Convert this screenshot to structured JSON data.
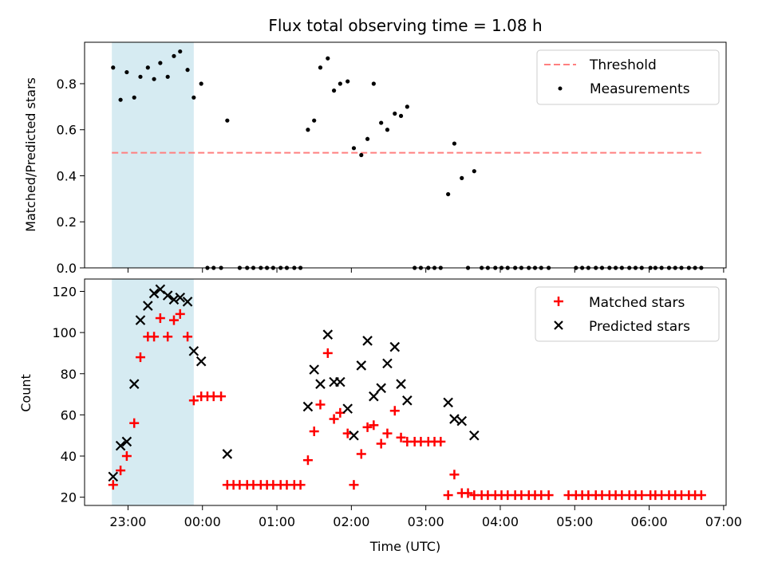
{
  "chart_data": [
    {
      "type": "scatter",
      "title": "Flux total observing time = 1.08 h",
      "xlabel": "",
      "ylabel": "Matched/Predicted stars",
      "ylim": [
        0,
        0.98
      ],
      "yticks": [
        "0.0",
        "0.2",
        "0.4",
        "0.6",
        "0.8"
      ],
      "shaded_region": {
        "from": "22:47",
        "to": "23:53",
        "color": "#add8e6"
      },
      "threshold": {
        "name": "Threshold",
        "value": 0.5,
        "from": "22:47",
        "to": "06:42",
        "color": "#ff7f7f"
      },
      "legend_position": "upper right",
      "legend": [
        "Threshold",
        "Measurements"
      ],
      "series": [
        {
          "name": "Measurements",
          "color": "#000000",
          "points": [
            [
              "22:48",
              0.87
            ],
            [
              "22:54",
              0.73
            ],
            [
              "22:59",
              0.85
            ],
            [
              "23:05",
              0.74
            ],
            [
              "23:10",
              0.83
            ],
            [
              "23:16",
              0.87
            ],
            [
              "23:21",
              0.82
            ],
            [
              "23:26",
              0.89
            ],
            [
              "23:32",
              0.83
            ],
            [
              "23:37",
              0.92
            ],
            [
              "23:42",
              0.94
            ],
            [
              "23:48",
              0.86
            ],
            [
              "23:53",
              0.74
            ],
            [
              "23:59",
              0.8
            ],
            [
              "00:04",
              0.0
            ],
            [
              "00:09",
              0.0
            ],
            [
              "00:15",
              0.0
            ],
            [
              "00:20",
              0.64
            ],
            [
              "00:30",
              0.0
            ],
            [
              "00:36",
              0.0
            ],
            [
              "00:41",
              0.0
            ],
            [
              "00:47",
              0.0
            ],
            [
              "00:52",
              0.0
            ],
            [
              "00:57",
              0.0
            ],
            [
              "01:03",
              0.0
            ],
            [
              "01:08",
              0.0
            ],
            [
              "01:14",
              0.0
            ],
            [
              "01:19",
              0.0
            ],
            [
              "01:25",
              0.6
            ],
            [
              "01:30",
              0.64
            ],
            [
              "01:35",
              0.87
            ],
            [
              "01:41",
              0.91
            ],
            [
              "01:46",
              0.77
            ],
            [
              "01:51",
              0.8
            ],
            [
              "01:57",
              0.81
            ],
            [
              "02:02",
              0.52
            ],
            [
              "02:08",
              0.49
            ],
            [
              "02:13",
              0.56
            ],
            [
              "02:18",
              0.8
            ],
            [
              "02:24",
              0.63
            ],
            [
              "02:29",
              0.6
            ],
            [
              "02:35",
              0.67
            ],
            [
              "02:40",
              0.66
            ],
            [
              "02:45",
              0.7
            ],
            [
              "02:51",
              0.0
            ],
            [
              "02:56",
              0.0
            ],
            [
              "03:02",
              0.0
            ],
            [
              "03:07",
              0.0
            ],
            [
              "03:12",
              0.0
            ],
            [
              "03:18",
              0.32
            ],
            [
              "03:23",
              0.54
            ],
            [
              "03:29",
              0.39
            ],
            [
              "03:34",
              0.0
            ],
            [
              "03:39",
              0.42
            ],
            [
              "03:45",
              0.0
            ],
            [
              "03:50",
              0.0
            ],
            [
              "03:56",
              0.0
            ],
            [
              "04:01",
              0.0
            ],
            [
              "04:06",
              0.0
            ],
            [
              "04:12",
              0.0
            ],
            [
              "04:17",
              0.0
            ],
            [
              "04:23",
              0.0
            ],
            [
              "04:28",
              0.0
            ],
            [
              "04:33",
              0.0
            ],
            [
              "04:39",
              0.0
            ],
            [
              "05:01",
              0.0
            ],
            [
              "05:06",
              0.0
            ],
            [
              "05:11",
              0.0
            ],
            [
              "05:17",
              0.0
            ],
            [
              "05:22",
              0.0
            ],
            [
              "05:28",
              0.0
            ],
            [
              "05:33",
              0.0
            ],
            [
              "05:38",
              0.0
            ],
            [
              "05:44",
              0.0
            ],
            [
              "05:49",
              0.0
            ],
            [
              "05:54",
              0.0
            ],
            [
              "06:01",
              0.0
            ],
            [
              "06:05",
              0.0
            ],
            [
              "06:10",
              0.0
            ],
            [
              "06:16",
              0.0
            ],
            [
              "06:21",
              0.0
            ],
            [
              "06:26",
              0.0
            ],
            [
              "06:32",
              0.0
            ],
            [
              "06:37",
              0.0
            ],
            [
              "06:42",
              0.0
            ]
          ]
        }
      ]
    },
    {
      "type": "scatter",
      "title": "",
      "xlabel": "Time (UTC)",
      "ylabel": "Count",
      "ylim": [
        16,
        126
      ],
      "yticks": [
        "20",
        "40",
        "60",
        "80",
        "100",
        "120"
      ],
      "xticks": [
        "23:00",
        "00:00",
        "01:00",
        "02:00",
        "03:00",
        "04:00",
        "05:00",
        "06:00",
        "07:00"
      ],
      "xlim": [
        "22:25",
        "07:02"
      ],
      "shaded_region": {
        "from": "22:47",
        "to": "23:53",
        "color": "#add8e6"
      },
      "legend_position": "upper right",
      "legend": [
        "Matched stars",
        "Predicted stars"
      ],
      "series": [
        {
          "name": "Matched stars",
          "color": "#ff0000",
          "marker": "+",
          "points": [
            [
              "22:48",
              26
            ],
            [
              "22:54",
              33
            ],
            [
              "22:59",
              40
            ],
            [
              "23:05",
              56
            ],
            [
              "23:10",
              88
            ],
            [
              "23:16",
              98
            ],
            [
              "23:21",
              98
            ],
            [
              "23:26",
              107
            ],
            [
              "23:32",
              98
            ],
            [
              "23:37",
              106
            ],
            [
              "23:42",
              109
            ],
            [
              "23:48",
              98
            ],
            [
              "23:53",
              67
            ],
            [
              "23:59",
              69
            ],
            [
              "00:04",
              69
            ],
            [
              "00:09",
              69
            ],
            [
              "00:15",
              69
            ],
            [
              "00:20",
              26
            ],
            [
              "00:25",
              26
            ],
            [
              "00:30",
              26
            ],
            [
              "00:36",
              26
            ],
            [
              "00:41",
              26
            ],
            [
              "00:47",
              26
            ],
            [
              "00:52",
              26
            ],
            [
              "00:57",
              26
            ],
            [
              "01:03",
              26
            ],
            [
              "01:08",
              26
            ],
            [
              "01:14",
              26
            ],
            [
              "01:19",
              26
            ],
            [
              "01:25",
              38
            ],
            [
              "01:30",
              52
            ],
            [
              "01:35",
              65
            ],
            [
              "01:41",
              90
            ],
            [
              "01:46",
              58
            ],
            [
              "01:51",
              61
            ],
            [
              "01:57",
              51
            ],
            [
              "02:02",
              26
            ],
            [
              "02:08",
              41
            ],
            [
              "02:13",
              54
            ],
            [
              "02:18",
              55
            ],
            [
              "02:24",
              46
            ],
            [
              "02:29",
              51
            ],
            [
              "02:35",
              62
            ],
            [
              "02:40",
              49
            ],
            [
              "02:45",
              47
            ],
            [
              "02:51",
              47
            ],
            [
              "02:56",
              47
            ],
            [
              "03:02",
              47
            ],
            [
              "03:07",
              47
            ],
            [
              "03:12",
              47
            ],
            [
              "03:18",
              21
            ],
            [
              "03:23",
              31
            ],
            [
              "03:29",
              22
            ],
            [
              "03:34",
              22
            ],
            [
              "03:39",
              21
            ],
            [
              "03:45",
              21
            ],
            [
              "03:50",
              21
            ],
            [
              "03:56",
              21
            ],
            [
              "04:01",
              21
            ],
            [
              "04:06",
              21
            ],
            [
              "04:12",
              21
            ],
            [
              "04:17",
              21
            ],
            [
              "04:23",
              21
            ],
            [
              "04:28",
              21
            ],
            [
              "04:33",
              21
            ],
            [
              "04:39",
              21
            ],
            [
              "04:55",
              21
            ],
            [
              "05:01",
              21
            ],
            [
              "05:06",
              21
            ],
            [
              "05:11",
              21
            ],
            [
              "05:17",
              21
            ],
            [
              "05:22",
              21
            ],
            [
              "05:28",
              21
            ],
            [
              "05:33",
              21
            ],
            [
              "05:38",
              21
            ],
            [
              "05:44",
              21
            ],
            [
              "05:49",
              21
            ],
            [
              "05:54",
              21
            ],
            [
              "06:01",
              21
            ],
            [
              "06:05",
              21
            ],
            [
              "06:10",
              21
            ],
            [
              "06:16",
              21
            ],
            [
              "06:21",
              21
            ],
            [
              "06:26",
              21
            ],
            [
              "06:32",
              21
            ],
            [
              "06:37",
              21
            ],
            [
              "06:42",
              21
            ]
          ]
        },
        {
          "name": "Predicted stars",
          "color": "#000000",
          "marker": "x",
          "points": [
            [
              "22:48",
              30
            ],
            [
              "22:54",
              45
            ],
            [
              "22:59",
              47
            ],
            [
              "23:05",
              75
            ],
            [
              "23:10",
              106
            ],
            [
              "23:16",
              113
            ],
            [
              "23:21",
              119
            ],
            [
              "23:26",
              121
            ],
            [
              "23:32",
              118
            ],
            [
              "23:37",
              116
            ],
            [
              "23:42",
              117
            ],
            [
              "23:48",
              115
            ],
            [
              "23:53",
              91
            ],
            [
              "23:59",
              86
            ],
            [
              "00:20",
              41
            ],
            [
              "01:25",
              64
            ],
            [
              "01:30",
              82
            ],
            [
              "01:35",
              75
            ],
            [
              "01:41",
              99
            ],
            [
              "01:46",
              76
            ],
            [
              "01:51",
              76
            ],
            [
              "01:57",
              63
            ],
            [
              "02:02",
              50
            ],
            [
              "02:08",
              84
            ],
            [
              "02:13",
              96
            ],
            [
              "02:18",
              69
            ],
            [
              "02:24",
              73
            ],
            [
              "02:29",
              85
            ],
            [
              "02:35",
              93
            ],
            [
              "02:40",
              75
            ],
            [
              "02:45",
              67
            ],
            [
              "03:18",
              66
            ],
            [
              "03:23",
              58
            ],
            [
              "03:29",
              57
            ],
            [
              "03:39",
              50
            ]
          ]
        }
      ]
    }
  ]
}
